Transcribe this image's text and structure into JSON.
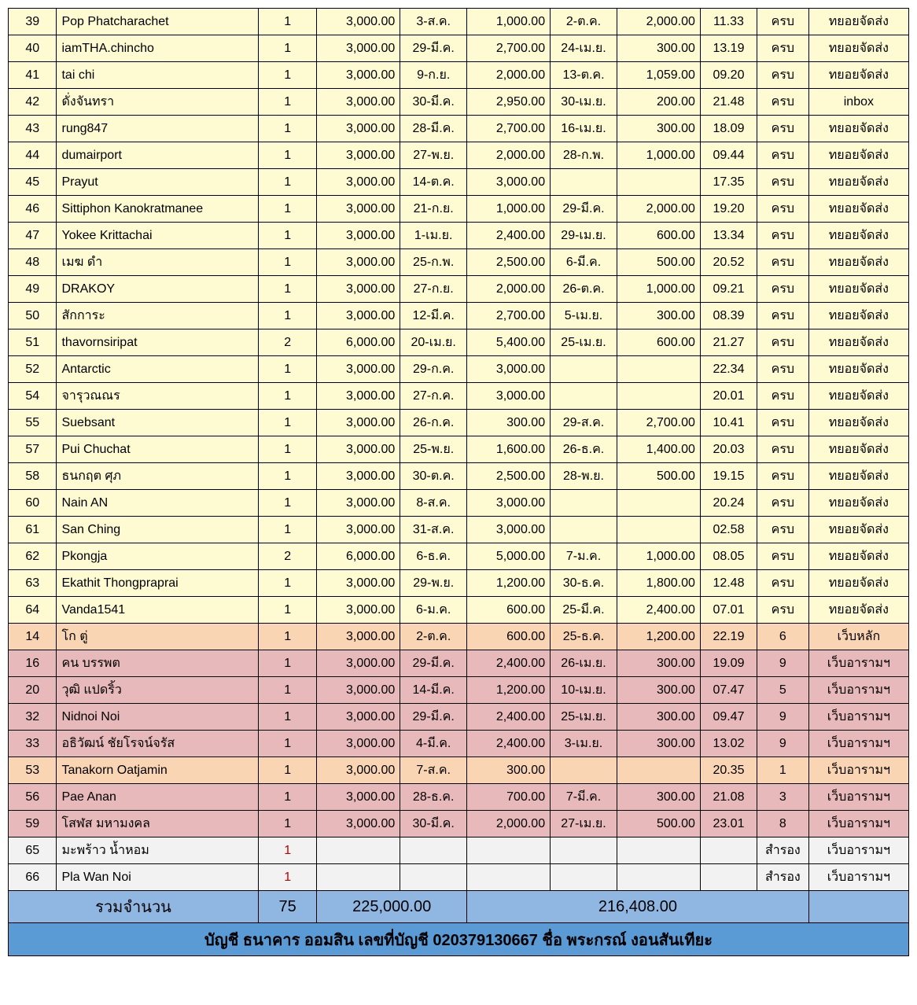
{
  "rows": [
    {
      "idx": "39",
      "name": "Pop Phatcharachet",
      "qty": "1",
      "amt1": "3,000.00",
      "d1": "3-ส.ค.",
      "amt2": "1,000.00",
      "d2": "2-ต.ค.",
      "amt3": "2,000.00",
      "time": "11.33",
      "status": "ครบ",
      "note": "ทยอยจัดส่ง",
      "cls": "yellow"
    },
    {
      "idx": "40",
      "name": "iamTHA.chincho",
      "qty": "1",
      "amt1": "3,000.00",
      "d1": "29-มี.ค.",
      "amt2": "2,700.00",
      "d2": "24-เม.ย.",
      "amt3": "300.00",
      "time": "13.19",
      "status": "ครบ",
      "note": "ทยอยจัดส่ง",
      "cls": "yellow"
    },
    {
      "idx": "41",
      "name": "tai chi",
      "qty": "1",
      "amt1": "3,000.00",
      "d1": "9-ก.ย.",
      "amt2": "2,000.00",
      "d2": "13-ต.ค.",
      "amt3": "1,059.00",
      "time": "09.20",
      "status": "ครบ",
      "note": "ทยอยจัดส่ง",
      "cls": "yellow"
    },
    {
      "idx": "42",
      "name": "ดั่งจันทรา",
      "qty": "1",
      "amt1": "3,000.00",
      "d1": "30-มี.ค.",
      "amt2": "2,950.00",
      "d2": "30-เม.ย.",
      "amt3": "200.00",
      "time": "21.48",
      "status": "ครบ",
      "note": "inbox",
      "cls": "yellow"
    },
    {
      "idx": "43",
      "name": "rung847",
      "qty": "1",
      "amt1": "3,000.00",
      "d1": "28-มี.ค.",
      "amt2": "2,700.00",
      "d2": "16-เม.ย.",
      "amt3": "300.00",
      "time": "18.09",
      "status": "ครบ",
      "note": "ทยอยจัดส่ง",
      "cls": "yellow"
    },
    {
      "idx": "44",
      "name": "dumairport",
      "qty": "1",
      "amt1": "3,000.00",
      "d1": "27-พ.ย.",
      "amt2": "2,000.00",
      "d2": "28-ก.พ.",
      "amt3": "1,000.00",
      "time": "09.44",
      "status": "ครบ",
      "note": "ทยอยจัดส่ง",
      "cls": "yellow"
    },
    {
      "idx": "45",
      "name": "Prayut",
      "qty": "1",
      "amt1": "3,000.00",
      "d1": "14-ต.ค.",
      "amt2": "3,000.00",
      "d2": "",
      "amt3": "",
      "time": "17.35",
      "status": "ครบ",
      "note": "ทยอยจัดส่ง",
      "cls": "yellow"
    },
    {
      "idx": "46",
      "name": "Sittiphon Kanokratmanee",
      "qty": "1",
      "amt1": "3,000.00",
      "d1": "21-ก.ย.",
      "amt2": "1,000.00",
      "d2": "29-มี.ค.",
      "amt3": "2,000.00",
      "time": "19.20",
      "status": "ครบ",
      "note": "ทยอยจัดส่ง",
      "cls": "yellow"
    },
    {
      "idx": "47",
      "name": "Yokee Krittachai",
      "qty": "1",
      "amt1": "3,000.00",
      "d1": "1-เม.ย.",
      "amt2": "2,400.00",
      "d2": "29-เม.ย.",
      "amt3": "600.00",
      "time": "13.34",
      "status": "ครบ",
      "note": "ทยอยจัดส่ง",
      "cls": "yellow"
    },
    {
      "idx": "48",
      "name": "เมฆ ดำ",
      "qty": "1",
      "amt1": "3,000.00",
      "d1": "25-ก.พ.",
      "amt2": "2,500.00",
      "d2": "6-มี.ค.",
      "amt3": "500.00",
      "time": "20.52",
      "status": "ครบ",
      "note": "ทยอยจัดส่ง",
      "cls": "yellow"
    },
    {
      "idx": "49",
      "name": "DRAKOY",
      "qty": "1",
      "amt1": "3,000.00",
      "d1": "27-ก.ย.",
      "amt2": "2,000.00",
      "d2": "26-ต.ค.",
      "amt3": "1,000.00",
      "time": "09.21",
      "status": "ครบ",
      "note": "ทยอยจัดส่ง",
      "cls": "yellow"
    },
    {
      "idx": "50",
      "name": "สักการะ",
      "qty": "1",
      "amt1": "3,000.00",
      "d1": "12-มี.ค.",
      "amt2": "2,700.00",
      "d2": "5-เม.ย.",
      "amt3": "300.00",
      "time": "08.39",
      "status": "ครบ",
      "note": "ทยอยจัดส่ง",
      "cls": "yellow"
    },
    {
      "idx": "51",
      "name": "thavornsiripat",
      "qty": "2",
      "amt1": "6,000.00",
      "d1": "20-เม.ย.",
      "amt2": "5,400.00",
      "d2": "25-เม.ย.",
      "amt3": "600.00",
      "time": "21.27",
      "status": "ครบ",
      "note": "ทยอยจัดส่ง",
      "cls": "yellow"
    },
    {
      "idx": "52",
      "name": "Antarctic",
      "qty": "1",
      "amt1": "3,000.00",
      "d1": "29-ก.ค.",
      "amt2": "3,000.00",
      "d2": "",
      "amt3": "",
      "time": "22.34",
      "status": "ครบ",
      "note": "ทยอยจัดส่ง",
      "cls": "yellow"
    },
    {
      "idx": "54",
      "name": "จารุวณณร",
      "qty": "1",
      "amt1": "3,000.00",
      "d1": "27-ก.ค.",
      "amt2": "3,000.00",
      "d2": "",
      "amt3": "",
      "time": "20.01",
      "status": "ครบ",
      "note": "ทยอยจัดส่ง",
      "cls": "yellow"
    },
    {
      "idx": "55",
      "name": "Suebsant",
      "qty": "1",
      "amt1": "3,000.00",
      "d1": "26-ก.ค.",
      "amt2": "300.00",
      "d2": "29-ส.ค.",
      "amt3": "2,700.00",
      "time": "10.41",
      "status": "ครบ",
      "note": "ทยอยจัดส่ง",
      "cls": "yellow"
    },
    {
      "idx": "57",
      "name": "Pui Chuchat",
      "qty": "1",
      "amt1": "3,000.00",
      "d1": "25-พ.ย.",
      "amt2": "1,600.00",
      "d2": "26-ธ.ค.",
      "amt3": "1,400.00",
      "time": "20.03",
      "status": "ครบ",
      "note": "ทยอยจัดส่ง",
      "cls": "yellow"
    },
    {
      "idx": "58",
      "name": "ธนกฤต ศุภ",
      "qty": "1",
      "amt1": "3,000.00",
      "d1": "30-ต.ค.",
      "amt2": "2,500.00",
      "d2": "28-พ.ย.",
      "amt3": "500.00",
      "time": "19.15",
      "status": "ครบ",
      "note": "ทยอยจัดส่ง",
      "cls": "yellow"
    },
    {
      "idx": "60",
      "name": "Nain AN",
      "qty": "1",
      "amt1": "3,000.00",
      "d1": "8-ส.ค.",
      "amt2": "3,000.00",
      "d2": "",
      "amt3": "",
      "time": "20.24",
      "status": "ครบ",
      "note": "ทยอยจัดส่ง",
      "cls": "yellow"
    },
    {
      "idx": "61",
      "name": "San Ching",
      "qty": "1",
      "amt1": "3,000.00",
      "d1": "31-ส.ค.",
      "amt2": "3,000.00",
      "d2": "",
      "amt3": "",
      "time": "02.58",
      "status": "ครบ",
      "note": "ทยอยจัดส่ง",
      "cls": "yellow"
    },
    {
      "idx": "62",
      "name": "Pkongja",
      "qty": "2",
      "amt1": "6,000.00",
      "d1": "6-ธ.ค.",
      "amt2": "5,000.00",
      "d2": "7-ม.ค.",
      "amt3": "1,000.00",
      "time": "08.05",
      "status": "ครบ",
      "note": "ทยอยจัดส่ง",
      "cls": "yellow"
    },
    {
      "idx": "63",
      "name": "Ekathit Thongpraprai",
      "qty": "1",
      "amt1": "3,000.00",
      "d1": "29-พ.ย.",
      "amt2": "1,200.00",
      "d2": "30-ธ.ค.",
      "amt3": "1,800.00",
      "time": "12.48",
      "status": "ครบ",
      "note": "ทยอยจัดส่ง",
      "cls": "yellow"
    },
    {
      "idx": "64",
      "name": "Vanda1541",
      "qty": "1",
      "amt1": "3,000.00",
      "d1": "6-ม.ค.",
      "amt2": "600.00",
      "d2": "25-มี.ค.",
      "amt3": "2,400.00",
      "time": "07.01",
      "status": "ครบ",
      "note": "ทยอยจัดส่ง",
      "cls": "yellow"
    },
    {
      "idx": "14",
      "name": "โก ตู่",
      "qty": "1",
      "amt1": "3,000.00",
      "d1": "2-ต.ค.",
      "amt2": "600.00",
      "d2": "25-ธ.ค.",
      "amt3": "1,200.00",
      "time": "22.19",
      "status": "6",
      "note": "เว็บหลัก",
      "cls": "peach"
    },
    {
      "idx": "16",
      "name": "คน บรรพต",
      "qty": "1",
      "amt1": "3,000.00",
      "d1": "29-มี.ค.",
      "amt2": "2,400.00",
      "d2": "26-เม.ย.",
      "amt3": "300.00",
      "time": "19.09",
      "status": "9",
      "note": "เว็บอารามฯ",
      "cls": "pink"
    },
    {
      "idx": "20",
      "name": "วุฒิ แปดริ้ว",
      "qty": "1",
      "amt1": "3,000.00",
      "d1": "14-มี.ค.",
      "amt2": "1,200.00",
      "d2": "10-เม.ย.",
      "amt3": "300.00",
      "time": "07.47",
      "status": "5",
      "note": "เว็บอารามฯ",
      "cls": "pink"
    },
    {
      "idx": "32",
      "name": "Nidnoi Noi",
      "qty": "1",
      "amt1": "3,000.00",
      "d1": "29-มี.ค.",
      "amt2": "2,400.00",
      "d2": "25-เม.ย.",
      "amt3": "300.00",
      "time": "09.47",
      "status": "9",
      "note": "เว็บอารามฯ",
      "cls": "pink"
    },
    {
      "idx": "33",
      "name": "อธิวัฒน์ ชัยโรจน์จรัส",
      "qty": "1",
      "amt1": "3,000.00",
      "d1": "4-มี.ค.",
      "amt2": "2,400.00",
      "d2": "3-เม.ย.",
      "amt3": "300.00",
      "time": "13.02",
      "status": "9",
      "note": "เว็บอารามฯ",
      "cls": "pink"
    },
    {
      "idx": "53",
      "name": "Tanakorn Oatjamin",
      "qty": "1",
      "amt1": "3,000.00",
      "d1": "7-ส.ค.",
      "amt2": "300.00",
      "d2": "",
      "amt3": "",
      "time": "20.35",
      "status": "1",
      "note": "เว็บอารามฯ",
      "cls": "peach"
    },
    {
      "idx": "56",
      "name": "Pae Anan",
      "qty": "1",
      "amt1": "3,000.00",
      "d1": "28-ธ.ค.",
      "amt2": "700.00",
      "d2": "7-มี.ค.",
      "amt3": "300.00",
      "time": "21.08",
      "status": "3",
      "note": "เว็บอารามฯ",
      "cls": "pink"
    },
    {
      "idx": "59",
      "name": "โสฬส มหามงคล",
      "qty": "1",
      "amt1": "3,000.00",
      "d1": "30-มี.ค.",
      "amt2": "2,000.00",
      "d2": "27-เม.ย.",
      "amt3": "500.00",
      "time": "23.01",
      "status": "8",
      "note": "เว็บอารามฯ",
      "cls": "pink"
    },
    {
      "idx": "65",
      "name": "มะพร้าว น้ำหอม",
      "qty": "1",
      "amt1": "",
      "d1": "",
      "amt2": "",
      "d2": "",
      "amt3": "",
      "time": "",
      "status": "สำรอง",
      "note": "เว็บอารามฯ",
      "cls": "gray",
      "qtyRed": true
    },
    {
      "idx": "66",
      "name": "Pla Wan Noi",
      "qty": "1",
      "amt1": "",
      "d1": "",
      "amt2": "",
      "d2": "",
      "amt3": "",
      "time": "",
      "status": "สำรอง",
      "note": "เว็บอารามฯ",
      "cls": "gray",
      "qtyRed": true
    }
  ],
  "summary": {
    "label": "รวมจำนวน",
    "qty": "75",
    "total1": "225,000.00",
    "total2": "216,408.00"
  },
  "footer": "บัญชี ธนาคาร ออมสิน เลขที่บัญชี 020379130667  ชื่อ พระกรณ์ งอนสันเทียะ"
}
